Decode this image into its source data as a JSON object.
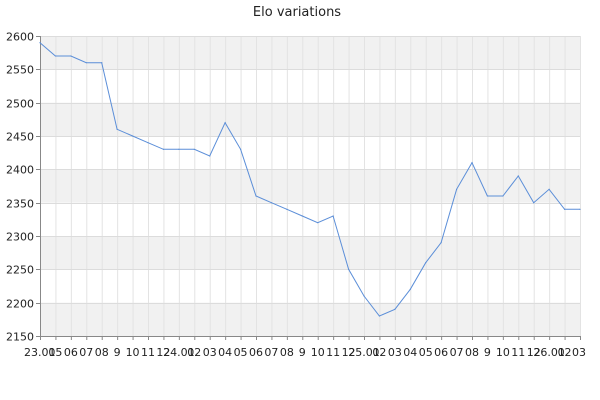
{
  "chart_data": {
    "type": "line",
    "title": "Elo variations",
    "xlabel": "",
    "ylabel": "",
    "ylim": [
      2150,
      2600
    ],
    "yticks": [
      2150,
      2200,
      2250,
      2300,
      2350,
      2400,
      2450,
      2500,
      2550,
      2600
    ],
    "grid": true,
    "x_tick_labels": [
      "23.01",
      "05",
      "06",
      "07",
      "08",
      "9",
      "10",
      "11",
      "12",
      "24.01",
      "02",
      "03",
      "04",
      "05",
      "06",
      "07",
      "08",
      "9",
      "10",
      "11",
      "12",
      "25.01",
      "02",
      "03",
      "04",
      "05",
      "06",
      "07",
      "08",
      "9",
      "10",
      "11",
      "12",
      "26.01",
      "02",
      "03"
    ],
    "series": [
      {
        "color": "#5b8ed8",
        "values": [
          2590,
          2570,
          2570,
          2560,
          2560,
          2460,
          2450,
          2440,
          2430,
          2430,
          2430,
          2420,
          2470,
          2430,
          2360,
          2350,
          2340,
          2330,
          2320,
          2330,
          2250,
          2210,
          2180,
          2190,
          2220,
          2260,
          2290,
          2370,
          2410,
          2360,
          2360,
          2390,
          2350,
          2370,
          2340,
          2340
        ]
      }
    ]
  }
}
